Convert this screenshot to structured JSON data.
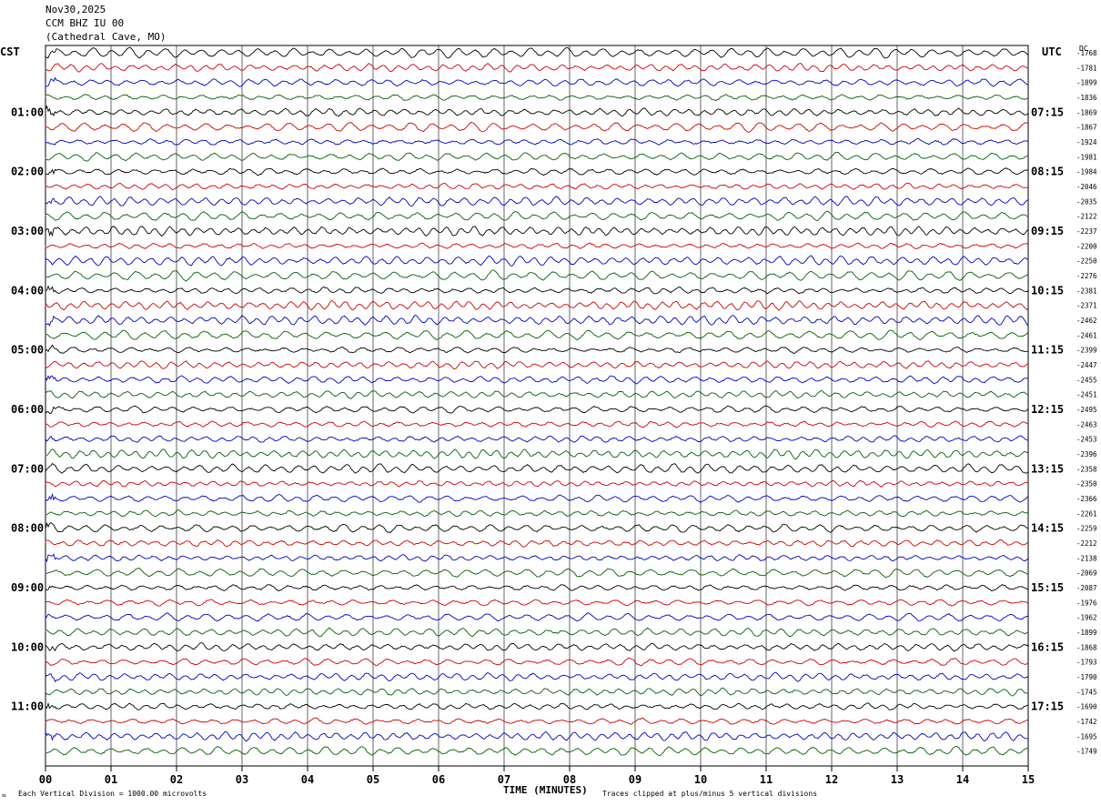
{
  "header": {
    "date": "Nov30,2025",
    "station": "CCM BHZ IU 00",
    "location": "(Cathedral Cave, MO)"
  },
  "left_tz": "CST",
  "right_tz": "UTC",
  "dc_label": "DC",
  "footer": {
    "scale_note": "Each Vertical Division = 1000.00 microvolts",
    "clip_note": "Traces clipped at plus/minus 5 vertical divisions",
    "corner_mark": "≈"
  },
  "chart_data": {
    "type": "line",
    "title": "",
    "xlabel": "TIME (MINUTES)",
    "ylabel": "",
    "xlim": [
      0,
      15
    ],
    "x_tick_labels": [
      "00",
      "01",
      "02",
      "03",
      "04",
      "05",
      "06",
      "07",
      "08",
      "09",
      "10",
      "11",
      "12",
      "13",
      "14",
      "15"
    ],
    "rows_per_hour": 4,
    "row_minutes": 15,
    "trace_colors": [
      "#000000",
      "#d40000",
      "#0000c8",
      "#006400"
    ],
    "grid": true,
    "left_hour_labels": [
      "01:00",
      "02:00",
      "03:00",
      "04:00",
      "05:00",
      "06:00",
      "07:00",
      "08:00",
      "09:00",
      "10:00",
      "11:00"
    ],
    "right_hour_labels": [
      "07:15",
      "08:15",
      "09:15",
      "10:15",
      "11:15",
      "12:15",
      "13:15",
      "14:15",
      "15:15",
      "16:15",
      "17:15"
    ],
    "dc_offsets": [
      "-1768",
      "-1781",
      "-1899",
      "-1836",
      "-1869",
      "-1867",
      "-1924",
      "-1981",
      "-1984",
      "-2046",
      "-2035",
      "-2122",
      "-2237",
      "-2200",
      "-2250",
      "-2276",
      "-2381",
      "-2371",
      "-2462",
      "-2461",
      "-2399",
      "-2447",
      "-2455",
      "-2451",
      "-2495",
      "-2463",
      "-2453",
      "-2396",
      "-2358",
      "-2350",
      "-2366",
      "-2261",
      "-2259",
      "-2212",
      "-2138",
      "-2069",
      "-2087",
      "-1976",
      "-1962",
      "-1899",
      "-1868",
      "-1793",
      "-1790",
      "-1745",
      "-1690",
      "-1742",
      "-1695",
      "-1749"
    ]
  }
}
